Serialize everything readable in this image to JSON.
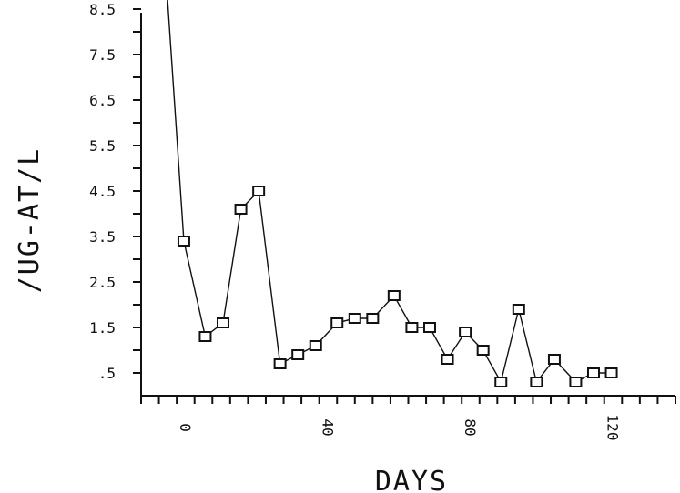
{
  "chart_data": {
    "type": "line",
    "xlabel": "DAYS",
    "ylabel": "/UG-AT/L",
    "xlim": [
      -10,
      140
    ],
    "ylim": [
      0,
      8.5
    ],
    "x_ticks": [
      0,
      40,
      80,
      120
    ],
    "y_ticks": [
      0.5,
      1.5,
      2.5,
      3.5,
      4.5,
      5.5,
      6.5,
      7.5,
      8.5
    ],
    "x_tick_labels": [
      "0",
      "40",
      "80",
      "120"
    ],
    "y_tick_labels": [
      ".5",
      "1.5",
      "2.5",
      "3.5",
      "4.5",
      "5.5",
      "6.5",
      "7.5",
      "8.5"
    ],
    "marker": "square",
    "series": [
      {
        "color": "#111111",
        "x": [
          -3,
          2,
          8,
          13,
          18,
          23,
          29,
          34,
          39,
          45,
          50,
          55,
          61,
          66,
          71,
          76,
          81,
          86,
          91,
          96,
          101,
          106,
          112,
          117,
          122
        ],
        "y": [
          9.2,
          3.4,
          1.3,
          1.6,
          4.1,
          4.5,
          0.7,
          0.9,
          1.1,
          1.6,
          1.7,
          1.7,
          2.2,
          1.5,
          1.5,
          0.8,
          1.4,
          1.0,
          0.3,
          1.9,
          0.3,
          0.8,
          0.3,
          0.5,
          0.5
        ]
      }
    ]
  }
}
